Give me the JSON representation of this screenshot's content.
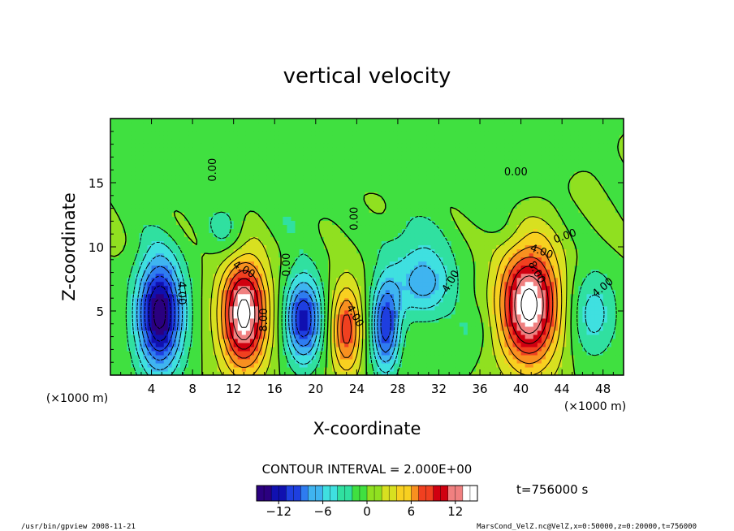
{
  "chart_data": {
    "type": "heatmap",
    "title": "vertical velocity",
    "xlabel": "X-coordinate",
    "ylabel": "Z-coordinate",
    "x_unit": "(×1000 m)",
    "x_unit_right": "(×1000 m)",
    "xlim": [
      0,
      50
    ],
    "ylim": [
      0,
      20
    ],
    "x_ticks": [
      4,
      8,
      12,
      16,
      20,
      24,
      28,
      32,
      36,
      40,
      44,
      48
    ],
    "y_ticks": [
      5,
      10,
      15
    ],
    "contour_interval_label": "CONTOUR INTERVAL = 2.000E+00",
    "time_label": "t=756000 s",
    "colorbar": {
      "min": -15,
      "max": 15,
      "step": 1,
      "ticks": [
        -12,
        -6,
        0,
        6,
        12
      ],
      "palette": [
        "#2b0080",
        "#1010b0",
        "#1e3fe0",
        "#2e7cf0",
        "#3fb4f0",
        "#3fe0e0",
        "#30e0a0",
        "#40e040",
        "#90e020",
        "#d8e020",
        "#f8d020",
        "#f89020",
        "#f04020",
        "#d00010",
        "#f08080",
        "#ffffff"
      ]
    },
    "contour_labels": [
      {
        "text": "0.00",
        "x": 10.0,
        "z": 16.0,
        "rot": -90
      },
      {
        "text": "0.00",
        "x": 23.8,
        "z": 12.2,
        "rot": -90
      },
      {
        "text": "0.00",
        "x": 39.5,
        "z": 15.8,
        "rot": 0
      },
      {
        "text": "0.00",
        "x": 44.3,
        "z": 10.8,
        "rot": -20
      },
      {
        "text": "4.00",
        "x": 13.0,
        "z": 8.2,
        "rot": 30
      },
      {
        "text": "4.00",
        "x": 42.0,
        "z": 9.6,
        "rot": 20
      },
      {
        "text": "4.00",
        "x": 23.8,
        "z": 4.6,
        "rot": 60
      },
      {
        "text": "4.00",
        "x": 33.2,
        "z": 7.3,
        "rot": -60
      },
      {
        "text": "4.00",
        "x": 48.0,
        "z": 6.8,
        "rot": -40
      },
      {
        "text": "4.00",
        "x": 6.9,
        "z": 6.4,
        "rot": 90
      },
      {
        "text": "8.00",
        "x": 15.0,
        "z": 4.3,
        "rot": -90
      },
      {
        "text": "8.00",
        "x": 41.5,
        "z": 8.0,
        "rot": 60
      },
      {
        "text": "0.00",
        "x": 17.2,
        "z": 8.6,
        "rot": -90
      }
    ],
    "cells": [
      {
        "x": 4.8,
        "z": 4.8,
        "sx": 2.3,
        "sz": 4.6,
        "amp": -15
      },
      {
        "x": 11.5,
        "z": 11.5,
        "sx": 2.0,
        "sz": 2.5,
        "amp": -3
      },
      {
        "x": 13.0,
        "z": 4.8,
        "sx": 2.3,
        "sz": 4.4,
        "amp": 15
      },
      {
        "x": 18.8,
        "z": 4.4,
        "sx": 1.8,
        "sz": 3.4,
        "amp": -12
      },
      {
        "x": 23.0,
        "z": 3.6,
        "sx": 1.5,
        "sz": 3.6,
        "amp": 9
      },
      {
        "x": 26.8,
        "z": 3.8,
        "sx": 1.4,
        "sz": 3.6,
        "amp": -11
      },
      {
        "x": 30.5,
        "z": 7.3,
        "sx": 3.0,
        "sz": 2.8,
        "amp": -7
      },
      {
        "x": 35.0,
        "z": 3.5,
        "sx": 2.0,
        "sz": 2.0,
        "amp": -2
      },
      {
        "x": 40.8,
        "z": 5.5,
        "sx": 3.0,
        "sz": 4.8,
        "amp": 15
      },
      {
        "x": 47.0,
        "z": 4.8,
        "sx": 2.4,
        "sz": 3.5,
        "amp": -5
      },
      {
        "x": 29.0,
        "z": 11.0,
        "sx": 3.0,
        "sz": 2.0,
        "amp": -2
      },
      {
        "x": 18.0,
        "z": 13.0,
        "sx": 3.0,
        "sz": 3.0,
        "amp": -1.5
      },
      {
        "x": 38.0,
        "z": 14.0,
        "sx": 4.0,
        "sz": 3.0,
        "amp": -1.5
      },
      {
        "x": 26.0,
        "z": 17.0,
        "sx": 4.0,
        "sz": 2.0,
        "amp": -1
      },
      {
        "x": 6.0,
        "z": 17.0,
        "sx": 3.0,
        "sz": 2.0,
        "amp": -1
      }
    ]
  },
  "footer": {
    "left": "/usr/bin/gpview  2008-11-21",
    "right": "MarsCond_VelZ.nc@VelZ,x=0:50000,z=0:20000,t=756000"
  }
}
